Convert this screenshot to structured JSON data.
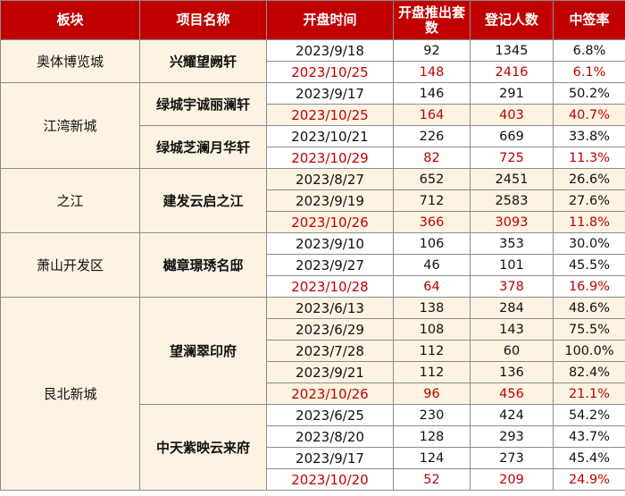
{
  "headers": {
    "block": "板块",
    "project": "项目名称",
    "date": "开盘时间",
    "units": "开盘推出套数",
    "registrants": "登记人数",
    "win_rate": "中签率"
  },
  "rows": [
    {
      "block": "奥体博览城",
      "project": "兴耀望阙轩",
      "date": "2023/9/18",
      "units": "92",
      "registrants": "1345",
      "win_rate": "6.8%"
    },
    {
      "block": "",
      "project": "",
      "date": "2023/10/25",
      "units": "148",
      "registrants": "2416",
      "win_rate": "6.1%"
    },
    {
      "block": "江湾新城",
      "project": "绿城宇诚丽澜轩",
      "date": "2023/9/17",
      "units": "146",
      "registrants": "291",
      "win_rate": "50.2%"
    },
    {
      "block": "",
      "project": "",
      "date": "2023/10/25",
      "units": "164",
      "registrants": "403",
      "win_rate": "40.7%"
    },
    {
      "block": "",
      "project": "绿城芝澜月华轩",
      "date": "2023/10/21",
      "units": "226",
      "registrants": "669",
      "win_rate": "33.8%"
    },
    {
      "block": "",
      "project": "",
      "date": "2023/10/29",
      "units": "82",
      "registrants": "725",
      "win_rate": "11.3%"
    },
    {
      "block": "之江",
      "project": "建发云启之江",
      "date": "2023/8/27",
      "units": "652",
      "registrants": "2451",
      "win_rate": "26.6%"
    },
    {
      "block": "",
      "project": "",
      "date": "2023/9/19",
      "units": "712",
      "registrants": "2583",
      "win_rate": "27.6%"
    },
    {
      "block": "",
      "project": "",
      "date": "2023/10/26",
      "units": "366",
      "registrants": "3093",
      "win_rate": "11.8%"
    },
    {
      "block": "萧山开发区",
      "project": "樾章璟琇名邸",
      "date": "2023/9/10",
      "units": "106",
      "registrants": "353",
      "win_rate": "30.0%"
    },
    {
      "block": "",
      "project": "",
      "date": "2023/9/27",
      "units": "46",
      "registrants": "101",
      "win_rate": "45.5%"
    },
    {
      "block": "",
      "project": "",
      "date": "2023/10/28",
      "units": "64",
      "registrants": "378",
      "win_rate": "16.9%"
    },
    {
      "block": "艮北新城",
      "project": "望澜翠印府",
      "date": "2023/6/13",
      "units": "138",
      "registrants": "284",
      "win_rate": "48.6%"
    },
    {
      "block": "",
      "project": "",
      "date": "2023/6/29",
      "units": "108",
      "registrants": "143",
      "win_rate": "75.5%"
    },
    {
      "block": "",
      "project": "",
      "date": "2023/7/28",
      "units": "112",
      "registrants": "60",
      "win_rate": "100.0%"
    },
    {
      "block": "",
      "project": "",
      "date": "2023/9/21",
      "units": "112",
      "registrants": "136",
      "win_rate": "82.4%"
    },
    {
      "block": "",
      "project": "",
      "date": "2023/10/26",
      "units": "96",
      "registrants": "456",
      "win_rate": "21.1%"
    },
    {
      "block": "",
      "project": "中天紫映云来府",
      "date": "2023/6/25",
      "units": "230",
      "registrants": "424",
      "win_rate": "54.2%"
    },
    {
      "block": "",
      "project": "",
      "date": "2023/8/20",
      "units": "128",
      "registrants": "293",
      "win_rate": "43.7%"
    },
    {
      "block": "",
      "project": "",
      "date": "2023/9/17",
      "units": "124",
      "registrants": "273",
      "win_rate": "45.4%"
    },
    {
      "block": "",
      "project": "",
      "date": "2023/10/20",
      "units": "52",
      "registrants": "209",
      "win_rate": "24.9%"
    }
  ],
  "colors": {
    "header_bg": "#c00000",
    "header_text": "#ffffff",
    "label_bg": "#fdf3e2",
    "latest_text": "#c00000"
  }
}
